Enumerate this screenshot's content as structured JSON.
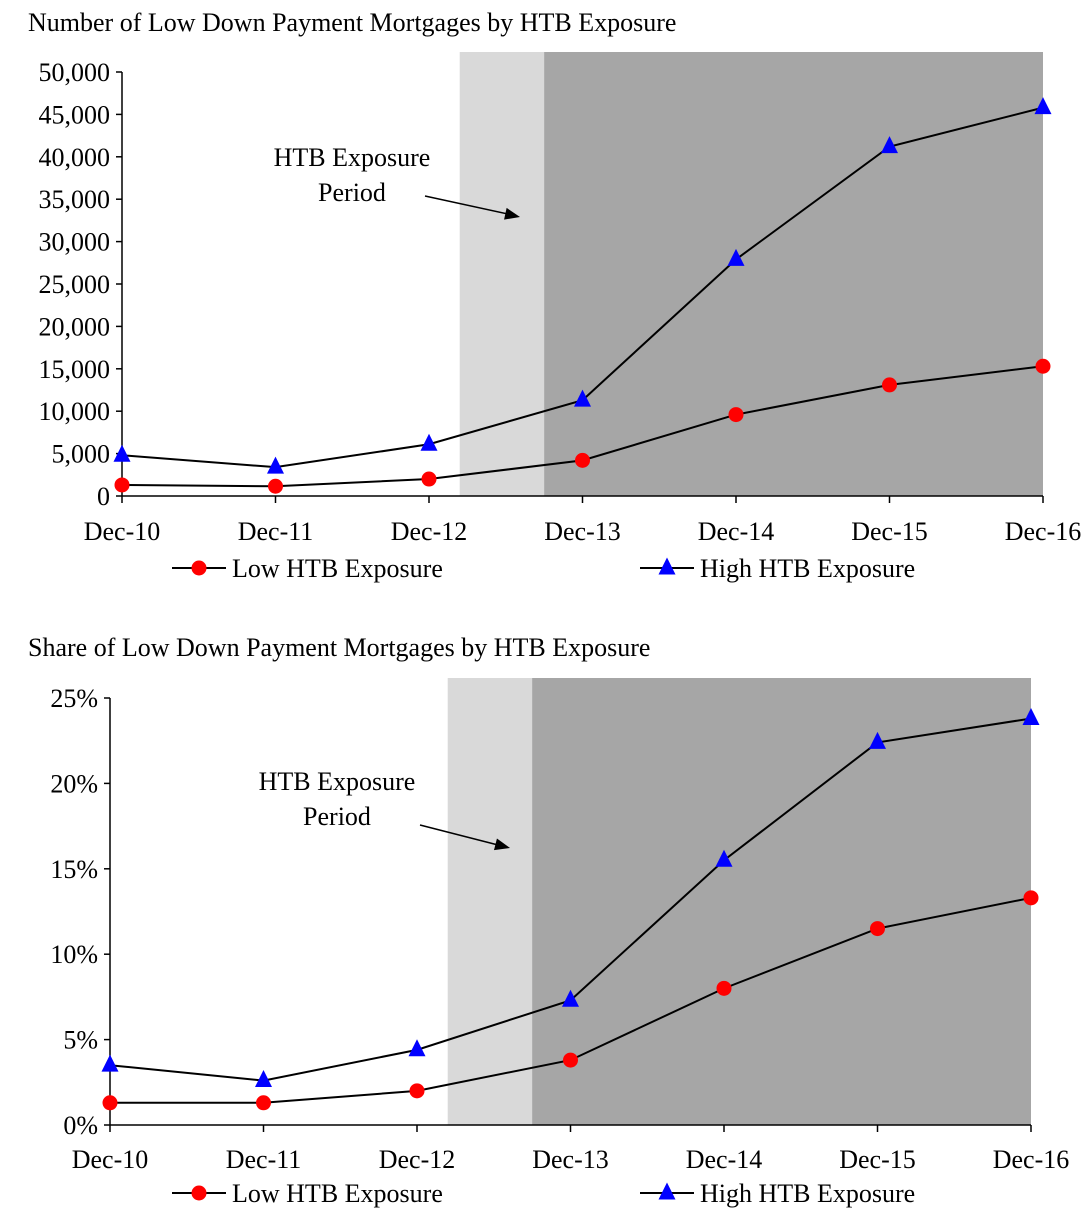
{
  "chart_data": [
    {
      "type": "line",
      "title": "Number of Low Down Payment Mortgages by HTB Exposure",
      "xlabel": "",
      "ylabel": "",
      "categories": [
        "Dec-10",
        "Dec-11",
        "Dec-12",
        "Dec-13",
        "Dec-14",
        "Dec-15",
        "Dec-16"
      ],
      "ylim": [
        0,
        50000
      ],
      "yticks": [
        "0",
        "5,000",
        "10,000",
        "15,000",
        "20,000",
        "25,000",
        "30,000",
        "35,000",
        "40,000",
        "45,000",
        "50,000"
      ],
      "series": [
        {
          "name": "Low HTB Exposure",
          "values": [
            1300,
            1150,
            2000,
            4200,
            9600,
            13100,
            15300
          ],
          "color": "#ff0000",
          "marker": "circle"
        },
        {
          "name": "High HTB Exposure",
          "values": [
            4800,
            3400,
            6100,
            11300,
            27900,
            41200,
            45800
          ],
          "color": "#0000ff",
          "marker": "triangle"
        }
      ],
      "shaded_regions": [
        {
          "start": 2.2,
          "end": 2.75,
          "color": "#d9d9d9"
        },
        {
          "start": 2.75,
          "end": 6.0,
          "color": "#a6a6a6"
        }
      ],
      "annotation": {
        "lines": [
          "HTB Exposure",
          "Period"
        ]
      },
      "legend_position": "bottom",
      "grid": false
    },
    {
      "type": "line",
      "title": "Share of Low Down Payment Mortgages by HTB Exposure",
      "xlabel": "",
      "ylabel": "",
      "categories": [
        "Dec-10",
        "Dec-11",
        "Dec-12",
        "Dec-13",
        "Dec-14",
        "Dec-15",
        "Dec-16"
      ],
      "ylim": [
        0,
        25
      ],
      "yticks": [
        "0%",
        "5%",
        "10%",
        "15%",
        "20%",
        "25%"
      ],
      "series": [
        {
          "name": "Low HTB Exposure",
          "values": [
            1.3,
            1.3,
            2.0,
            3.8,
            8.0,
            11.5,
            13.3
          ],
          "color": "#ff0000",
          "marker": "circle"
        },
        {
          "name": "High HTB Exposure",
          "values": [
            3.5,
            2.6,
            4.4,
            7.3,
            15.5,
            22.4,
            23.8
          ],
          "color": "#0000ff",
          "marker": "triangle"
        }
      ],
      "shaded_regions": [
        {
          "start": 2.2,
          "end": 2.75,
          "color": "#d9d9d9"
        },
        {
          "start": 2.75,
          "end": 6.0,
          "color": "#a6a6a6"
        }
      ],
      "annotation": {
        "lines": [
          "HTB Exposure",
          "Period"
        ]
      },
      "legend_position": "bottom",
      "grid": false
    }
  ]
}
